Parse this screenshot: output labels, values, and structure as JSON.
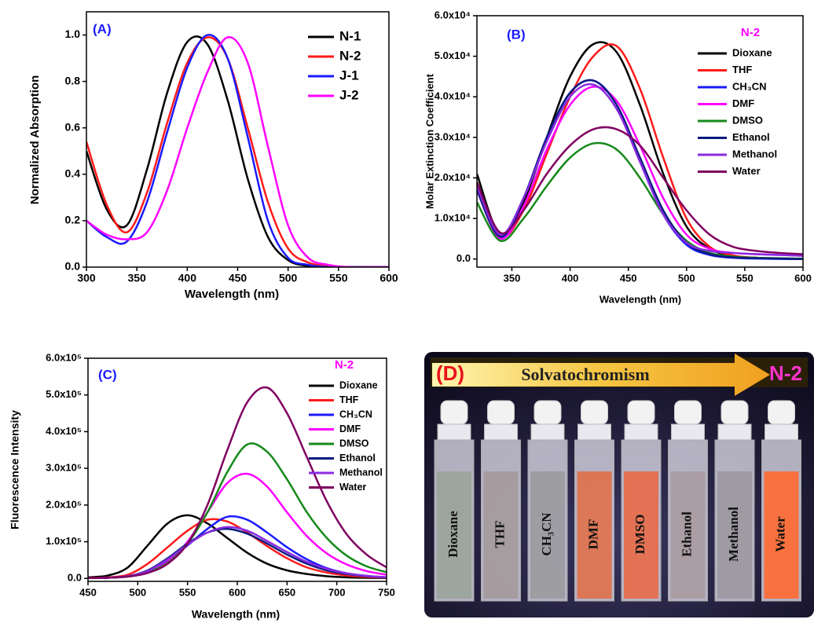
{
  "chart_data": [
    {
      "type": "line",
      "panel_label": "(A)",
      "x_label": "Wavelength (nm)",
      "y_label": "Normalized Absorption",
      "legend": "upper right",
      "x": [
        300,
        320,
        340,
        360,
        380,
        400,
        420,
        440,
        460,
        480,
        500,
        520,
        540,
        560,
        580,
        600
      ],
      "xlim": [
        300,
        600
      ],
      "xticks": [
        300,
        350,
        400,
        450,
        500,
        550,
        600
      ],
      "ylim": [
        0,
        1.1
      ],
      "yticks": [
        {
          "value": 0,
          "label": "0.0"
        },
        0.2,
        0.4,
        0.6,
        0.8,
        {
          "value": 1,
          "label": "1.0"
        }
      ],
      "series": [
        {
          "name": "N-1",
          "color": "#000000",
          "values": [
            0.5,
            0.25,
            0.18,
            0.42,
            0.75,
            0.97,
            0.96,
            0.72,
            0.38,
            0.13,
            0.03,
            0.005,
            0,
            0,
            0,
            0
          ]
        },
        {
          "name": "N-2",
          "color": "#ff1a1a",
          "values": [
            0.54,
            0.27,
            0.15,
            0.32,
            0.62,
            0.88,
            0.99,
            0.9,
            0.6,
            0.28,
            0.08,
            0.02,
            0.005,
            0,
            0,
            0
          ]
        },
        {
          "name": "J-1",
          "color": "#1a1aff",
          "values": [
            0.2,
            0.13,
            0.11,
            0.28,
            0.58,
            0.86,
            1.0,
            0.9,
            0.56,
            0.2,
            0.04,
            0.01,
            0,
            0,
            0,
            0
          ]
        },
        {
          "name": "J-2",
          "color": "#ff00ff",
          "values": [
            0.2,
            0.14,
            0.12,
            0.15,
            0.33,
            0.6,
            0.84,
            0.99,
            0.88,
            0.52,
            0.18,
            0.04,
            0.01,
            0,
            0,
            0
          ]
        }
      ]
    },
    {
      "type": "line",
      "panel_label": "(B)",
      "annotation": "N-2",
      "x_label": "Wavelength (nm)",
      "y_label": "Molar Extinction Coefficient",
      "legend": "upper right",
      "x": [
        320,
        340,
        360,
        380,
        400,
        420,
        440,
        460,
        480,
        500,
        520,
        540,
        560,
        580,
        600
      ],
      "xlim": [
        320,
        600
      ],
      "xticks": [
        350,
        400,
        450,
        500,
        550,
        600
      ],
      "ylim": [
        -2000,
        60000
      ],
      "yticks": [
        {
          "value": 0,
          "label": "0.0"
        },
        {
          "value": 10000,
          "label": "1.0x10⁴"
        },
        {
          "value": 20000,
          "label": "2.0x10⁴"
        },
        {
          "value": 30000,
          "label": "3.0x10⁴"
        },
        {
          "value": 40000,
          "label": "4.0x10⁴"
        },
        {
          "value": 50000,
          "label": "5.0x10⁴"
        },
        {
          "value": 60000,
          "label": "6.0x10⁴"
        }
      ],
      "series": [
        {
          "name": "Dioxane",
          "color": "#000000",
          "values": [
            21000,
            6000,
            14000,
            30000,
            45000,
            53000,
            51000,
            38000,
            21000,
            8000,
            2500,
            800,
            300,
            100,
            0
          ]
        },
        {
          "name": "THF",
          "color": "#ff1a1a",
          "values": [
            19000,
            5500,
            12000,
            26000,
            40000,
            50000,
            52500,
            42000,
            25000,
            10000,
            3000,
            900,
            300,
            100,
            0
          ]
        },
        {
          "name": "CH₃CN",
          "color": "#1a1aff",
          "values": [
            18000,
            5000,
            15000,
            30000,
            41000,
            44000,
            38000,
            24000,
            11000,
            3500,
            1000,
            300,
            100,
            0,
            0
          ]
        },
        {
          "name": "DMF",
          "color": "#ff00ff",
          "values": [
            17000,
            5000,
            13000,
            27000,
            38000,
            42500,
            39000,
            28000,
            15000,
            6000,
            2500,
            1500,
            1200,
            1000,
            800
          ]
        },
        {
          "name": "DMSO",
          "color": "#16891a",
          "values": [
            14000,
            4500,
            10000,
            18000,
            25000,
            28500,
            27000,
            20000,
            11000,
            4500,
            1500,
            600,
            300,
            200,
            100
          ]
        },
        {
          "name": "Ethanol",
          "color": "#0b1a80",
          "values": [
            17000,
            5500,
            15000,
            30000,
            41000,
            44000,
            38000,
            25000,
            12000,
            4000,
            1200,
            400,
            200,
            100,
            0
          ]
        },
        {
          "name": "Methanol",
          "color": "#8a2be2",
          "values": [
            18000,
            6000,
            15000,
            29000,
            40000,
            43000,
            37000,
            24000,
            11000,
            4000,
            2000,
            1500,
            1200,
            1000,
            800
          ]
        },
        {
          "name": "Water",
          "color": "#800060",
          "values": [
            19000,
            6500,
            12000,
            21000,
            28000,
            32000,
            32000,
            28000,
            20000,
            12000,
            6000,
            3000,
            2000,
            1500,
            1200
          ]
        }
      ]
    },
    {
      "type": "line",
      "panel_label": "(C)",
      "annotation": "N-2",
      "x_label": "Wavelength (nm)",
      "y_label": "Fluorescence Intensity",
      "legend": "upper right",
      "x": [
        450,
        470,
        490,
        510,
        530,
        550,
        570,
        590,
        610,
        630,
        650,
        670,
        690,
        710,
        730,
        750
      ],
      "xlim": [
        450,
        750
      ],
      "xticks": [
        450,
        500,
        550,
        600,
        650,
        700,
        750
      ],
      "ylim": [
        -8000,
        600000
      ],
      "yticks": [
        {
          "value": 0,
          "label": "0.0"
        },
        {
          "value": 100000,
          "label": "1.0x10⁵"
        },
        {
          "value": 200000,
          "label": "2.0x10⁵"
        },
        {
          "value": 300000,
          "label": "3.0x10⁵"
        },
        {
          "value": 400000,
          "label": "4.0x10⁵"
        },
        {
          "value": 500000,
          "label": "5.0x10⁵"
        },
        {
          "value": 600000,
          "label": "6.0x10⁵"
        }
      ],
      "series": [
        {
          "name": "Dioxane",
          "color": "#000000",
          "values": [
            3000,
            8000,
            30000,
            90000,
            150000,
            172000,
            150000,
            110000,
            70000,
            40000,
            22000,
            12000,
            6000,
            3000,
            1500,
            1000
          ]
        },
        {
          "name": "THF",
          "color": "#ff1a1a",
          "values": [
            1000,
            3000,
            10000,
            40000,
            85000,
            130000,
            160000,
            155000,
            125000,
            88000,
            55000,
            30000,
            16000,
            8000,
            4000,
            2000
          ]
        },
        {
          "name": "CH₃CN",
          "color": "#1a1aff",
          "values": [
            1000,
            2000,
            6000,
            20000,
            50000,
            90000,
            135000,
            168000,
            160000,
            125000,
            85000,
            52000,
            28000,
            14000,
            7000,
            3000
          ]
        },
        {
          "name": "DMF",
          "color": "#ff00ff",
          "values": [
            1000,
            2000,
            5000,
            18000,
            45000,
            100000,
            180000,
            260000,
            285000,
            250000,
            180000,
            115000,
            68000,
            38000,
            20000,
            10000
          ]
        },
        {
          "name": "DMSO",
          "color": "#16891a",
          "values": [
            1000,
            2000,
            5000,
            17000,
            42000,
            95000,
            180000,
            290000,
            365000,
            345000,
            270000,
            180000,
            110000,
            62000,
            33000,
            17000
          ]
        },
        {
          "name": "Ethanol",
          "color": "#0b1a80",
          "values": [
            1000,
            2000,
            6000,
            22000,
            55000,
            95000,
            125000,
            135000,
            122000,
            95000,
            65000,
            40000,
            22000,
            12000,
            6000,
            3000
          ]
        },
        {
          "name": "Methanol",
          "color": "#8a2be2",
          "values": [
            1000,
            2000,
            6000,
            20000,
            52000,
            92000,
            125000,
            140000,
            130000,
            102000,
            72000,
            45000,
            26000,
            14000,
            7000,
            3500
          ]
        },
        {
          "name": "Water",
          "color": "#800060",
          "values": [
            1000,
            2000,
            5000,
            15000,
            40000,
            95000,
            200000,
            350000,
            480000,
            520000,
            450000,
            330000,
            210000,
            120000,
            65000,
            30000
          ]
        }
      ]
    }
  ],
  "panel_d": {
    "label": "(D)",
    "banner": "Solvatochromism",
    "compound": "N-2",
    "vials": [
      "Dioxane",
      "THF",
      "CH₃CN",
      "DMF",
      "DMSO",
      "Ethanol",
      "Methanol",
      "Water"
    ]
  }
}
